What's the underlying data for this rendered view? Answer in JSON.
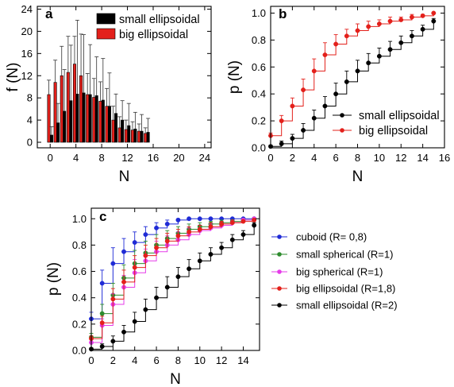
{
  "chart_data": [
    {
      "panel": "a",
      "type": "bar",
      "xlabel": "N",
      "ylabel": "f (N)",
      "xlim": [
        -2,
        25
      ],
      "ylim": [
        -1,
        24.5
      ],
      "xticks": [
        0,
        4,
        8,
        12,
        16,
        20,
        24
      ],
      "yticks": [
        0,
        4,
        8,
        12,
        16,
        20,
        24
      ],
      "legend_position": "top-right",
      "series": [
        {
          "name": "small ellipsoidal",
          "color": "#000000",
          "x": [
            0,
            1,
            2,
            3,
            4,
            5,
            6,
            7,
            8,
            9,
            10,
            11,
            12,
            13,
            14,
            15
          ],
          "values": [
            1.3,
            3.5,
            5.6,
            7.5,
            8.7,
            8.9,
            8.6,
            8.4,
            7.6,
            6.5,
            5.2,
            4.0,
            3.0,
            2.4,
            2.0,
            1.8
          ],
          "errors": [
            1.5,
            3.5,
            7.5,
            10.0,
            13.3,
            10.5,
            9.0,
            7.0,
            7.5,
            6.0,
            3.5,
            3.5,
            4.0,
            3.0,
            3.0,
            2.5
          ]
        },
        {
          "name": "big ellipsoidal",
          "color": "#e3201b",
          "x": [
            0,
            1,
            2,
            3,
            4,
            5,
            6,
            7,
            8,
            9,
            10,
            11,
            12,
            13,
            14,
            15
          ],
          "values": [
            8.6,
            10.8,
            12.0,
            12.6,
            14.1,
            12.0,
            8.6,
            8.1,
            7.4,
            6.5,
            4.0,
            2.6,
            2.3,
            2.2,
            2.0,
            1.6
          ],
          "errors": [
            2.6,
            4.0,
            5.3,
            6.5,
            5.0,
            7.5,
            3.8,
            3.4,
            3.5,
            3.2,
            2.5,
            2.0,
            1.7,
            1.5,
            1.3,
            1.0
          ]
        }
      ]
    },
    {
      "panel": "b",
      "type": "line",
      "step": true,
      "xlabel": "N",
      "ylabel": "p (N)",
      "xlim": [
        0,
        16
      ],
      "ylim": [
        0,
        1.05
      ],
      "xticks": [
        0,
        2,
        4,
        6,
        8,
        10,
        12,
        14,
        16
      ],
      "yticks": [
        0.0,
        0.2,
        0.4,
        0.6,
        0.8,
        1.0
      ],
      "legend_position": "bottom-right",
      "series": [
        {
          "name": "small ellipsoidal",
          "color": "#000000",
          "x": [
            0,
            1,
            2,
            3,
            4,
            5,
            6,
            7,
            8,
            9,
            10,
            11,
            12,
            13,
            14,
            15
          ],
          "values": [
            0.01,
            0.03,
            0.07,
            0.13,
            0.22,
            0.31,
            0.4,
            0.49,
            0.57,
            0.63,
            0.68,
            0.73,
            0.78,
            0.83,
            0.88,
            0.94
          ],
          "errors": [
            0.01,
            0.02,
            0.03,
            0.05,
            0.06,
            0.07,
            0.08,
            0.08,
            0.08,
            0.07,
            0.06,
            0.06,
            0.05,
            0.04,
            0.03,
            0.02
          ]
        },
        {
          "name": "big ellipsoidal",
          "color": "#e3201b",
          "x": [
            0,
            1,
            2,
            3,
            4,
            5,
            6,
            7,
            8,
            9,
            10,
            11,
            12,
            13,
            14,
            15
          ],
          "values": [
            0.09,
            0.2,
            0.31,
            0.43,
            0.57,
            0.69,
            0.77,
            0.83,
            0.87,
            0.9,
            0.92,
            0.94,
            0.95,
            0.97,
            0.98,
            1.0
          ],
          "errors": [
            0.02,
            0.04,
            0.06,
            0.08,
            0.09,
            0.09,
            0.07,
            0.05,
            0.05,
            0.04,
            0.03,
            0.03,
            0.02,
            0.02,
            0.01,
            0.0
          ]
        }
      ]
    },
    {
      "panel": "c",
      "type": "line",
      "step": true,
      "xlabel": "N",
      "ylabel": "p (N)",
      "xlim": [
        0,
        15.5
      ],
      "ylim": [
        0,
        1.08
      ],
      "xticks": [
        0,
        2,
        4,
        6,
        8,
        10,
        12,
        14
      ],
      "yticks": [
        0.0,
        0.2,
        0.4,
        0.6,
        0.8,
        1.0
      ],
      "legend_position": "right, outside plot",
      "series": [
        {
          "name": "cuboid (R= 0,8)",
          "color": "#1f2bd6",
          "x": [
            0,
            1,
            2,
            3,
            4,
            5,
            6,
            7,
            8,
            9,
            10,
            11,
            12,
            13,
            14,
            15
          ],
          "values": [
            0.24,
            0.51,
            0.66,
            0.75,
            0.82,
            0.88,
            0.93,
            0.96,
            0.99,
            1.0,
            1.0,
            1.0,
            1.0,
            1.0,
            1.0,
            1.0
          ],
          "errors": [
            0.05,
            0.1,
            0.12,
            0.1,
            0.08,
            0.06,
            0.04,
            0.03,
            0.01,
            0,
            0,
            0,
            0,
            0,
            0,
            0
          ]
        },
        {
          "name": "small spherical (R=1)",
          "color": "#2e8b2e",
          "x": [
            0,
            1,
            2,
            3,
            4,
            5,
            6,
            7,
            8,
            9,
            10,
            11,
            12,
            13,
            14,
            15
          ],
          "values": [
            0.1,
            0.28,
            0.42,
            0.55,
            0.66,
            0.74,
            0.8,
            0.85,
            0.89,
            0.92,
            0.94,
            0.96,
            0.97,
            0.98,
            0.99,
            1.0
          ],
          "errors": [
            0.03,
            0.07,
            0.09,
            0.1,
            0.1,
            0.09,
            0.08,
            0.06,
            0.05,
            0.04,
            0.03,
            0.02,
            0.02,
            0.01,
            0.01,
            0
          ]
        },
        {
          "name": "big spherical (R=1)",
          "color": "#e53be8",
          "x": [
            0,
            1,
            2,
            3,
            4,
            5,
            6,
            7,
            8,
            9,
            10,
            11,
            12,
            13,
            14,
            15
          ],
          "values": [
            0.06,
            0.19,
            0.35,
            0.48,
            0.59,
            0.68,
            0.75,
            0.8,
            0.84,
            0.88,
            0.91,
            0.93,
            0.95,
            0.97,
            0.99,
            1.0
          ],
          "errors": [
            0.02,
            0.05,
            0.08,
            0.09,
            0.1,
            0.09,
            0.08,
            0.07,
            0.06,
            0.05,
            0.04,
            0.03,
            0.02,
            0.02,
            0.01,
            0
          ]
        },
        {
          "name": "big ellipsoidal (R=1,8)",
          "color": "#e3201b",
          "x": [
            0,
            1,
            2,
            3,
            4,
            5,
            6,
            7,
            8,
            9,
            10,
            11,
            12,
            13,
            14,
            15
          ],
          "values": [
            0.09,
            0.21,
            0.39,
            0.52,
            0.63,
            0.72,
            0.78,
            0.83,
            0.87,
            0.9,
            0.92,
            0.94,
            0.96,
            0.97,
            0.98,
            0.99
          ],
          "errors": [
            0.02,
            0.05,
            0.08,
            0.09,
            0.09,
            0.08,
            0.07,
            0.06,
            0.05,
            0.04,
            0.03,
            0.03,
            0.02,
            0.02,
            0.01,
            0.01
          ]
        },
        {
          "name": "small ellipsoidal (R=2)",
          "color": "#000000",
          "x": [
            0,
            1,
            2,
            3,
            4,
            5,
            6,
            7,
            8,
            9,
            10,
            11,
            12,
            13,
            14,
            15
          ],
          "values": [
            0.01,
            0.03,
            0.07,
            0.14,
            0.22,
            0.31,
            0.4,
            0.48,
            0.56,
            0.62,
            0.68,
            0.73,
            0.78,
            0.84,
            0.88,
            0.95
          ],
          "errors": [
            0.01,
            0.02,
            0.04,
            0.05,
            0.07,
            0.08,
            0.08,
            0.08,
            0.07,
            0.07,
            0.06,
            0.05,
            0.04,
            0.04,
            0.03,
            0.02
          ]
        }
      ]
    }
  ]
}
